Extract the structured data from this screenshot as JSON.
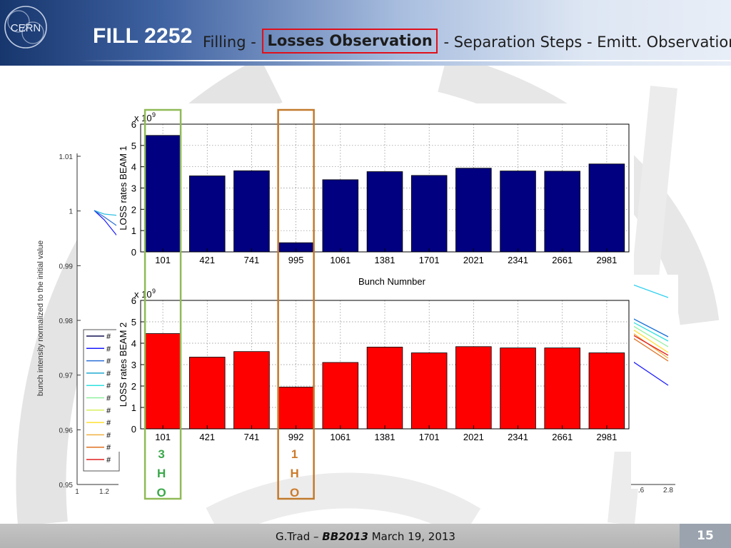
{
  "header": {
    "fill_title": "FILL 2252",
    "steps": [
      "Filling",
      "Losses Observation",
      "Separation Steps",
      "Emitt. Observation"
    ],
    "current_step_index": 1,
    "step_separator": " - ",
    "logo_text": "CERN",
    "highlight_color": "#e0101b"
  },
  "footer": {
    "author": "G.Trad",
    "dash": " – ",
    "conference": "BB2013",
    "date": " March 19, 2013",
    "page_number": "15"
  },
  "chart_data": [
    {
      "type": "bar",
      "categories": [
        "101",
        "421",
        "741",
        "995",
        "1061",
        "1381",
        "1701",
        "2021",
        "2341",
        "2661",
        "2981"
      ],
      "values": [
        5.47,
        3.57,
        3.81,
        0.43,
        3.39,
        3.77,
        3.59,
        3.93,
        3.8,
        3.79,
        4.13
      ],
      "ylabel": "LOSS rates BEAM 1",
      "xlabel": "Bunch Numnber",
      "ylim": [
        0,
        6
      ],
      "yticks": [
        "0",
        "1",
        "2",
        "3",
        "4",
        "5",
        "6"
      ],
      "exponent_label": "x 10",
      "exponent_power": "9",
      "color": "#000080",
      "grid": true
    },
    {
      "type": "bar",
      "categories": [
        "101",
        "421",
        "741",
        "992",
        "1061",
        "1381",
        "1701",
        "2021",
        "2341",
        "2661",
        "2981"
      ],
      "values": [
        4.45,
        3.35,
        3.61,
        1.95,
        3.1,
        3.82,
        3.55,
        3.84,
        3.78,
        3.78,
        3.55
      ],
      "ylabel": "LOSS rates BEAM 2",
      "xlabel": "",
      "ylim": [
        0,
        6
      ],
      "yticks": [
        "0",
        "1",
        "2",
        "3",
        "4",
        "5",
        "6"
      ],
      "exponent_label": "x 10",
      "exponent_power": "9",
      "color": "#ff0000",
      "grid": true
    }
  ],
  "highlights": [
    {
      "label": [
        "3",
        "H",
        "O"
      ],
      "color": "#3aa84a",
      "border": "#8fba56"
    },
    {
      "label": [
        "1",
        "H",
        "O"
      ],
      "color": "#cc7a2a",
      "border": "#c27a2c"
    }
  ],
  "background_plot": {
    "ylabel": "bunch intensity normalized to the initial value",
    "yticks": [
      "1.01",
      "1",
      "0.99",
      "0.98",
      "0.97",
      "0.96",
      "0.95"
    ],
    "xticks_left": [
      "1",
      "1.2"
    ],
    "xticks_right": [
      ".6",
      "2.8"
    ],
    "legend_entries": [
      "#",
      "#",
      "#",
      "#",
      "#",
      "#",
      "#",
      "#",
      "#",
      "#",
      "#"
    ]
  }
}
